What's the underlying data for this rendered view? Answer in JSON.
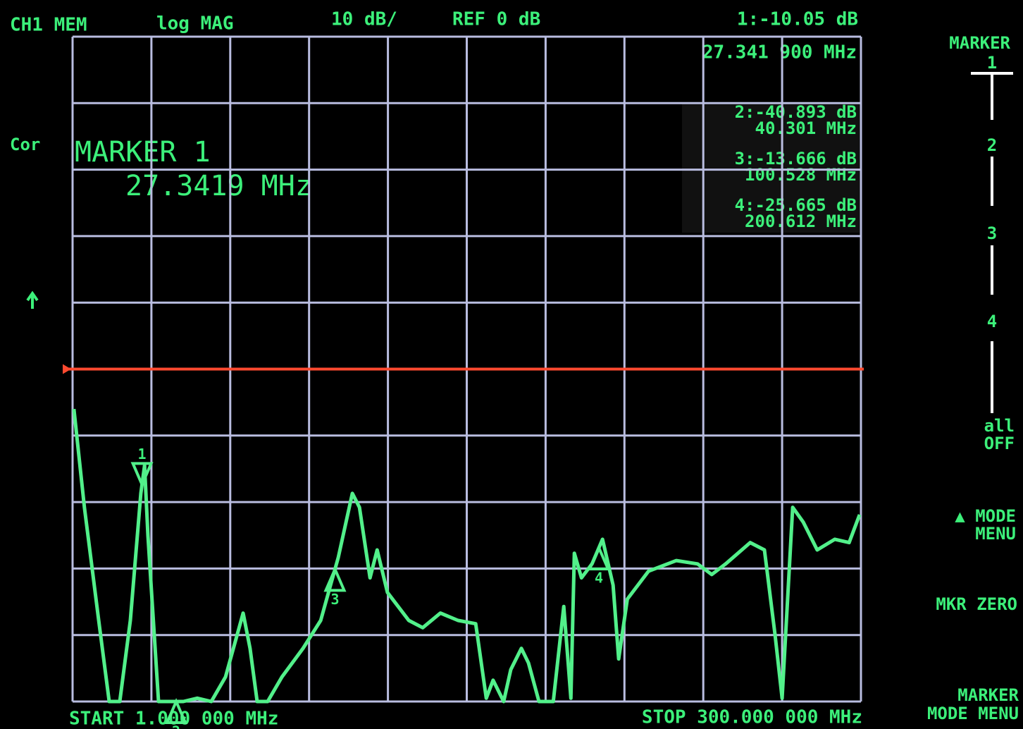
{
  "header": {
    "channel": "CH1 MEM",
    "format": "log MAG",
    "scale": "10 dB/",
    "reference": "REF 0 dB",
    "active_marker_value": "1:-10.05 dB",
    "active_marker_frequency": "27.341 900 MHz"
  },
  "left_labels": {
    "correction": "Cor"
  },
  "marker_readouts": [
    {
      "value": "2:-40.893 dB",
      "frequency": "40.301 MHz"
    },
    {
      "value": "3:-13.666 dB",
      "frequency": "100.528 MHz"
    },
    {
      "value": "4:-25.665 dB",
      "frequency": "200.612 MHz"
    }
  ],
  "big_readout": {
    "title": "MARKER 1",
    "value": "27.3419 MHz"
  },
  "footer": {
    "start": "START 1.000 000 MHz",
    "stop": "STOP 300.000 000 MHz"
  },
  "softkeys": {
    "title": "MARKER",
    "keys": [
      "1",
      "2",
      "3",
      "4"
    ],
    "all_off": [
      "all",
      "OFF"
    ],
    "mode_menu": [
      "▲ MODE",
      "MENU"
    ],
    "mkr_zero": "MKR ZERO",
    "marker_mode_menu": [
      "MARKER",
      "MODE MENU"
    ]
  },
  "chart_data": {
    "type": "line",
    "xlim": [
      1,
      300
    ],
    "ylim": [
      -50,
      50
    ],
    "grid": true,
    "grid_color": "#b9bde0",
    "reference_line": 0,
    "reference_color": "#ff4a30",
    "color": "#52f08a",
    "x": [
      1.5,
      5.5,
      10.9,
      14.9,
      18.9,
      22.9,
      26.9,
      28.3,
      29.6,
      33.6,
      43.0,
      48.3,
      53.6,
      59.0,
      65.7,
      68.3,
      71.0,
      75.0,
      80.4,
      88.4,
      95.1,
      101.8,
      107.1,
      109.8,
      113.8,
      116.5,
      120.4,
      128.5,
      133.8,
      140.5,
      147.2,
      153.9,
      157.9,
      160.5,
      164.5,
      167.2,
      171.2,
      173.9,
      177.9,
      183.3,
      187.3,
      190.0,
      191.3,
      194.0,
      198.0,
      202.0,
      206.0,
      208.1,
      211.4,
      219.4,
      230.0,
      238.0,
      243.4,
      248.7,
      258.0,
      263.4,
      267.4,
      270.1,
      274.1,
      278.1,
      283.4,
      290.1,
      295.5,
      299.5
    ],
    "values": [
      -6.0,
      -20.8,
      -37.8,
      -50,
      -50,
      -37.8,
      -18.7,
      -14.5,
      -25.1,
      -50,
      -50,
      -49.5,
      -50,
      -46.3,
      -36.7,
      -42.0,
      -50,
      -50,
      -46.3,
      -42.0,
      -37.8,
      -28.3,
      -18.7,
      -20.8,
      -31.4,
      -27.2,
      -33.6,
      -37.8,
      -38.9,
      -36.7,
      -37.8,
      -38.3,
      -49.5,
      -46.8,
      -50,
      -45.2,
      -42.0,
      -44.2,
      -50,
      -50,
      -35.7,
      -49.5,
      -27.7,
      -31.4,
      -29.3,
      -25.6,
      -32.5,
      -43.6,
      -34.6,
      -30.4,
      -28.8,
      -29.3,
      -30.9,
      -29.3,
      -26.1,
      -27.2,
      -39.9,
      -49.5,
      -20.8,
      -23.0,
      -27.2,
      -25.6,
      -26.1,
      -21.9
    ],
    "markers": [
      {
        "label": "1",
        "x": 27.3419
      },
      {
        "label": "2",
        "x": 40.301
      },
      {
        "label": "3",
        "x": 100.528
      },
      {
        "label": "4",
        "x": 200.612
      }
    ]
  }
}
